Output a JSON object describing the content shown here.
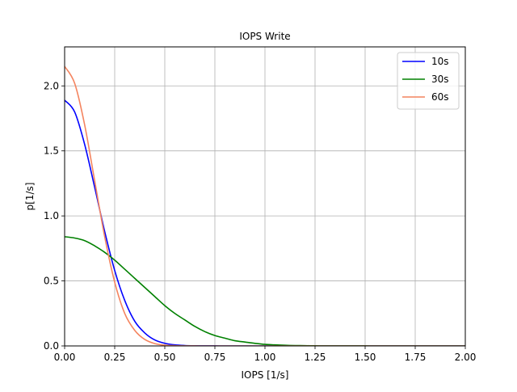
{
  "chart_data": {
    "type": "line",
    "title": "IOPS Write",
    "xlabel": "IOPS [1/s]",
    "ylabel": "p[1/s]",
    "xlim": [
      0,
      2.0
    ],
    "ylim": [
      0,
      2.3
    ],
    "xticks": [
      0,
      0.25,
      0.5,
      0.75,
      1.0,
      1.25,
      1.5,
      1.75,
      2.0
    ],
    "xtick_labels": [
      "0.00",
      "0.25",
      "0.50",
      "0.75",
      "1.00",
      "1.25",
      "1.50",
      "1.75",
      "2.00"
    ],
    "yticks": [
      0,
      0.5,
      1.0,
      1.5,
      2.0
    ],
    "ytick_labels": [
      "0.0",
      "0.5",
      "1.0",
      "1.5",
      "2.0"
    ],
    "grid": true,
    "legend_position": "top-right",
    "x": [
      0,
      0.05,
      0.1,
      0.15,
      0.2,
      0.25,
      0.3,
      0.35,
      0.4,
      0.45,
      0.5,
      0.55,
      0.6,
      0.65,
      0.7,
      0.75,
      0.8,
      0.85,
      0.9,
      0.95,
      1.0,
      1.05,
      1.1,
      1.15,
      1.2,
      1.25,
      1.3,
      1.35,
      1.4,
      1.45,
      1.5,
      1.55,
      1.6,
      1.65,
      1.7,
      1.75,
      1.8,
      1.85,
      1.9,
      1.95,
      2.0
    ],
    "series": [
      {
        "name": "10s",
        "color": "#0000ff",
        "values": [
          1.89,
          1.8,
          1.55,
          1.22,
          0.88,
          0.58,
          0.35,
          0.19,
          0.1,
          0.046,
          0.02,
          0.008,
          0.003,
          0.001,
          0.0003,
          0.0001,
          0,
          0,
          0,
          0,
          0,
          0,
          0,
          0,
          0,
          0,
          0,
          0,
          0,
          0,
          0,
          0,
          0,
          0,
          0,
          0,
          0,
          0,
          0,
          0,
          0
        ]
      },
      {
        "name": "30s",
        "color": "#008000",
        "values": [
          0.84,
          0.83,
          0.81,
          0.77,
          0.72,
          0.66,
          0.59,
          0.52,
          0.45,
          0.38,
          0.31,
          0.25,
          0.2,
          0.15,
          0.11,
          0.08,
          0.06,
          0.04,
          0.03,
          0.02,
          0.012,
          0.008,
          0.005,
          0.003,
          0.002,
          0.001,
          0.0006,
          0.0004,
          0.0002,
          0.0001,
          0.0001,
          0,
          0,
          0,
          0,
          0,
          0,
          0,
          0,
          0,
          0
        ]
      },
      {
        "name": "60s",
        "color": "#f4845f",
        "values": [
          2.15,
          2.02,
          1.7,
          1.27,
          0.84,
          0.49,
          0.25,
          0.12,
          0.05,
          0.018,
          0.006,
          0.002,
          0.0005,
          0.0001,
          0,
          0,
          0,
          0,
          0,
          0,
          0,
          0,
          0,
          0,
          0,
          0,
          0,
          0,
          0,
          0,
          0,
          0,
          0,
          0,
          0,
          0,
          0,
          0,
          0,
          0,
          0
        ]
      }
    ]
  }
}
